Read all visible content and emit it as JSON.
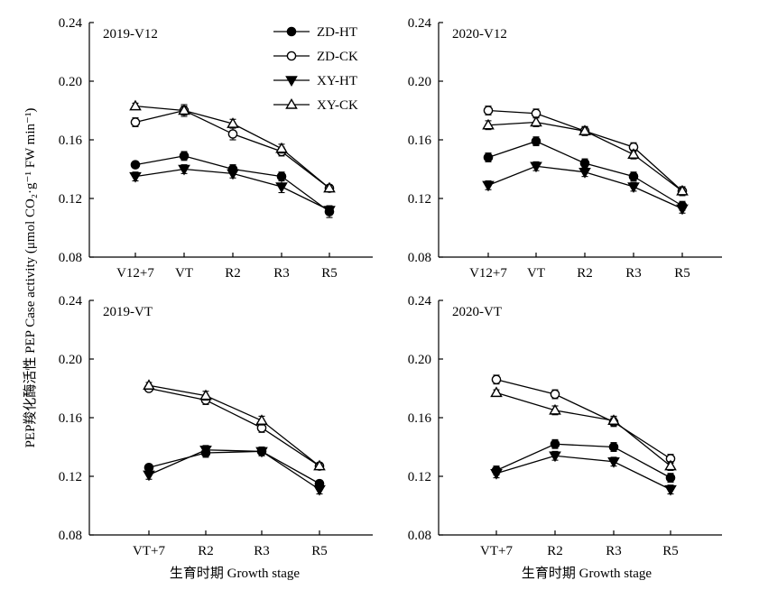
{
  "ylabel": "PEP羧化酶活性 PEP Case activity (μmol CO₂·g⁻¹ FW min⁻¹)",
  "xlabel": "生育时期 Growth stage",
  "legend": [
    {
      "name": "ZD-HT",
      "marker": "circle",
      "filled": true
    },
    {
      "name": "ZD-CK",
      "marker": "circle",
      "filled": false
    },
    {
      "name": "XY-HT",
      "marker": "triangle-down",
      "filled": true
    },
    {
      "name": "XY-CK",
      "marker": "triangle-up",
      "filled": false
    }
  ],
  "chart_data": [
    {
      "type": "line",
      "title": "2019-V12",
      "x": [
        "V12+7",
        "VT",
        "R2",
        "R3",
        "R5"
      ],
      "ylim": [
        0.08,
        0.24
      ],
      "yticks": [
        "0.08",
        "0.12",
        "0.16",
        "0.20",
        "0.24"
      ],
      "series": [
        {
          "name": "ZD-HT",
          "values": [
            0.143,
            0.149,
            0.14,
            0.135,
            0.111
          ],
          "errors": [
            0.002,
            0.003,
            0.003,
            0.003,
            0.004
          ]
        },
        {
          "name": "ZD-CK",
          "values": [
            0.172,
            0.18,
            0.164,
            0.152,
            0.127
          ],
          "errors": [
            0.003,
            0.003,
            0.004,
            0.003,
            0.002
          ]
        },
        {
          "name": "XY-HT",
          "values": [
            0.135,
            0.14,
            0.137,
            0.128,
            0.112
          ],
          "errors": [
            0.003,
            0.003,
            0.003,
            0.004,
            0.003
          ]
        },
        {
          "name": "XY-CK",
          "values": [
            0.183,
            0.18,
            0.171,
            0.154,
            0.127
          ],
          "errors": [
            0.002,
            0.004,
            0.003,
            0.003,
            0.002
          ]
        }
      ]
    },
    {
      "type": "line",
      "title": "2020-V12",
      "x": [
        "V12+7",
        "VT",
        "R2",
        "R3",
        "R5"
      ],
      "ylim": [
        0.08,
        0.24
      ],
      "yticks": [
        "0.08",
        "0.12",
        "0.16",
        "0.20",
        "0.24"
      ],
      "series": [
        {
          "name": "ZD-HT",
          "values": [
            0.148,
            0.159,
            0.144,
            0.135,
            0.115
          ],
          "errors": [
            0.003,
            0.003,
            0.003,
            0.003,
            0.003
          ]
        },
        {
          "name": "ZD-CK",
          "values": [
            0.18,
            0.178,
            0.166,
            0.155,
            0.125
          ],
          "errors": [
            0.003,
            0.003,
            0.003,
            0.003,
            0.003
          ]
        },
        {
          "name": "XY-HT",
          "values": [
            0.129,
            0.142,
            0.138,
            0.128,
            0.113
          ],
          "errors": [
            0.003,
            0.003,
            0.003,
            0.003,
            0.003
          ]
        },
        {
          "name": "XY-CK",
          "values": [
            0.17,
            0.172,
            0.166,
            0.15,
            0.125
          ],
          "errors": [
            0.003,
            0.003,
            0.003,
            0.003,
            0.003
          ]
        }
      ]
    },
    {
      "type": "line",
      "title": "2019-VT",
      "x": [
        "VT+7",
        "R2",
        "R3",
        "R5"
      ],
      "ylim": [
        0.08,
        0.24
      ],
      "yticks": [
        "0.08",
        "0.12",
        "0.16",
        "0.20",
        "0.24"
      ],
      "series": [
        {
          "name": "ZD-HT",
          "values": [
            0.126,
            0.136,
            0.137,
            0.115
          ],
          "errors": [
            0.002,
            0.003,
            0.002,
            0.002
          ]
        },
        {
          "name": "ZD-CK",
          "values": [
            0.18,
            0.172,
            0.153,
            0.127
          ],
          "errors": [
            0.002,
            0.003,
            0.003,
            0.002
          ]
        },
        {
          "name": "XY-HT",
          "values": [
            0.121,
            0.138,
            0.137,
            0.111
          ],
          "errors": [
            0.003,
            0.003,
            0.003,
            0.003
          ]
        },
        {
          "name": "XY-CK",
          "values": [
            0.182,
            0.175,
            0.158,
            0.127
          ],
          "errors": [
            0.002,
            0.003,
            0.003,
            0.002
          ]
        }
      ]
    },
    {
      "type": "line",
      "title": "2020-VT",
      "x": [
        "VT+7",
        "R2",
        "R3",
        "R5"
      ],
      "ylim": [
        0.08,
        0.24
      ],
      "yticks": [
        "0.08",
        "0.12",
        "0.16",
        "0.20",
        "0.24"
      ],
      "series": [
        {
          "name": "ZD-HT",
          "values": [
            0.124,
            0.142,
            0.14,
            0.119
          ],
          "errors": [
            0.003,
            0.003,
            0.003,
            0.003
          ]
        },
        {
          "name": "ZD-CK",
          "values": [
            0.186,
            0.176,
            0.157,
            0.132
          ],
          "errors": [
            0.003,
            0.003,
            0.003,
            0.003
          ]
        },
        {
          "name": "XY-HT",
          "values": [
            0.122,
            0.134,
            0.13,
            0.111
          ],
          "errors": [
            0.003,
            0.003,
            0.003,
            0.003
          ]
        },
        {
          "name": "XY-CK",
          "values": [
            0.177,
            0.165,
            0.158,
            0.127
          ],
          "errors": [
            0.002,
            0.003,
            0.003,
            0.003
          ]
        }
      ]
    }
  ]
}
